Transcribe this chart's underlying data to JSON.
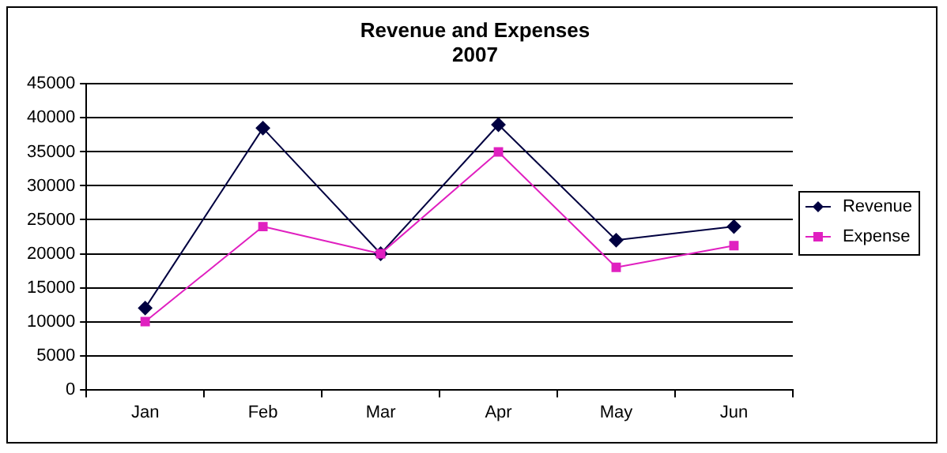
{
  "chart_data": {
    "type": "line",
    "title": [
      "Revenue and Expenses",
      "2007"
    ],
    "categories": [
      "Jan",
      "Feb",
      "Mar",
      "Apr",
      "May",
      "Jun"
    ],
    "series": [
      {
        "name": "Revenue",
        "color": "#000040",
        "marker": "diamond",
        "values": [
          12000,
          38500,
          20000,
          39000,
          22000,
          24000
        ]
      },
      {
        "name": "Expense",
        "color": "#e020c0",
        "marker": "square",
        "values": [
          10000,
          24000,
          20000,
          35000,
          18000,
          21200
        ]
      }
    ],
    "ylim": [
      0,
      45000
    ],
    "yticks": [
      0,
      5000,
      10000,
      15000,
      20000,
      25000,
      30000,
      35000,
      40000,
      45000
    ],
    "grid": "y",
    "legend": "right",
    "line_style": "solid"
  }
}
